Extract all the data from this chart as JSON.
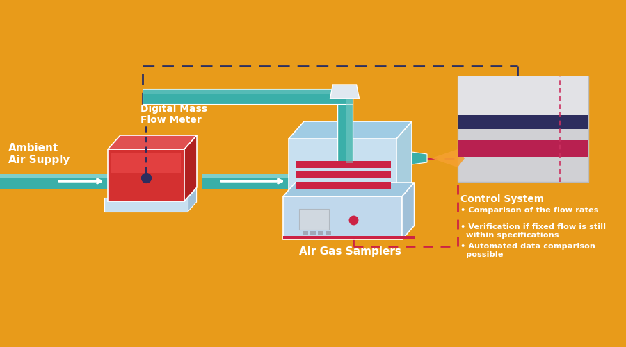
{
  "bg_color": "#E89B1A",
  "ambient_text": "Ambient\nAir Supply",
  "flow_meter_text": "Digital Mass\nFlow Meter",
  "air_sampler_text": "Air Gas Samplers",
  "control_title": "Control System",
  "control_bullets": [
    "Comparison of the flow rates",
    "Verification if fixed flow is still\n  within specifications",
    "Automated data comparison\n  possible"
  ],
  "teal_color": "#3AAFA9",
  "teal_light": "#7ECECA",
  "red_color": "#CC2244",
  "dark_navy": "#2D2D5E",
  "light_blue": "#B8D8E8",
  "light_blue2": "#C8E0F0",
  "white": "#FFFFFF",
  "orange_glow": "#F5A030",
  "dashed_color": "#2D3060",
  "dashed_red": "#CC2244"
}
